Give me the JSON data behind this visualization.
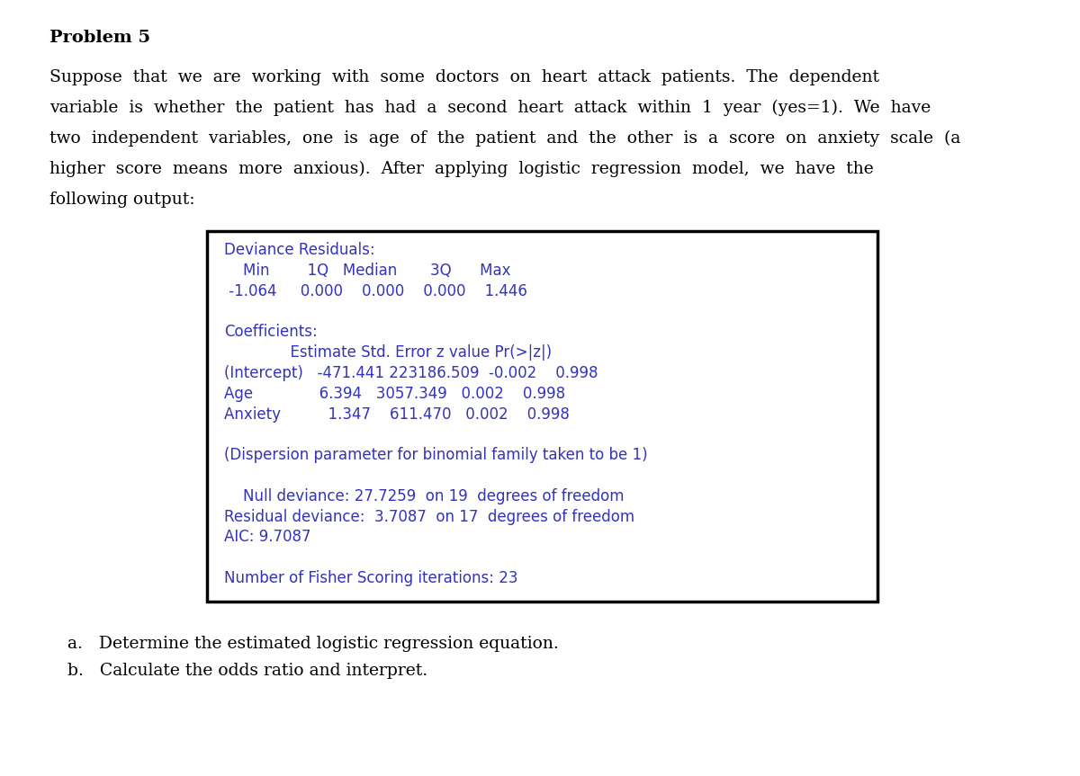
{
  "bg_color": "#ffffff",
  "title": "Problem 5",
  "paragraph_lines": [
    "Suppose  that  we  are  working  with  some  doctors  on  heart  attack  patients.  The  dependent",
    "variable  is  whether  the  patient  has  had  a  second  heart  attack  within  1  year  (yes=1).  We  have",
    "two  independent  variables,  one  is  age  of  the  patient  and  the  other  is  a  score  on  anxiety  scale  (a",
    "higher  score  means  more  anxious).  After  applying  logistic  regression  model,  we  have  the",
    "following output:"
  ],
  "code_lines": [
    "Deviance Residuals:",
    "    Min        1Q   Median       3Q      Max",
    " -1.064     0.000    0.000    0.000    1.446",
    "",
    "Coefficients:",
    "              Estimate Std. Error z value Pr(>|z|)",
    "(Intercept)   -471.441 223186.509  -0.002    0.998",
    "Age              6.394   3057.349   0.002    0.998",
    "Anxiety          1.347    611.470   0.002    0.998",
    "",
    "(Dispersion parameter for binomial family taken to be 1)",
    "",
    "    Null deviance: 27.7259  on 19  degrees of freedom",
    "Residual deviance:  3.7087  on 17  degrees of freedom",
    "AIC: 9.7087",
    "",
    "Number of Fisher Scoring iterations: 23"
  ],
  "code_color": "#3333bb",
  "box_edge_color": "#000000",
  "box_facecolor": "#ffffff",
  "questions": [
    "a.   Determine the estimated logistic regression equation.",
    "b.   Calculate the odds ratio and interpret."
  ],
  "title_fontsize": 14,
  "body_fontsize": 13.5,
  "code_fontsize": 12.0,
  "question_fontsize": 13.5
}
